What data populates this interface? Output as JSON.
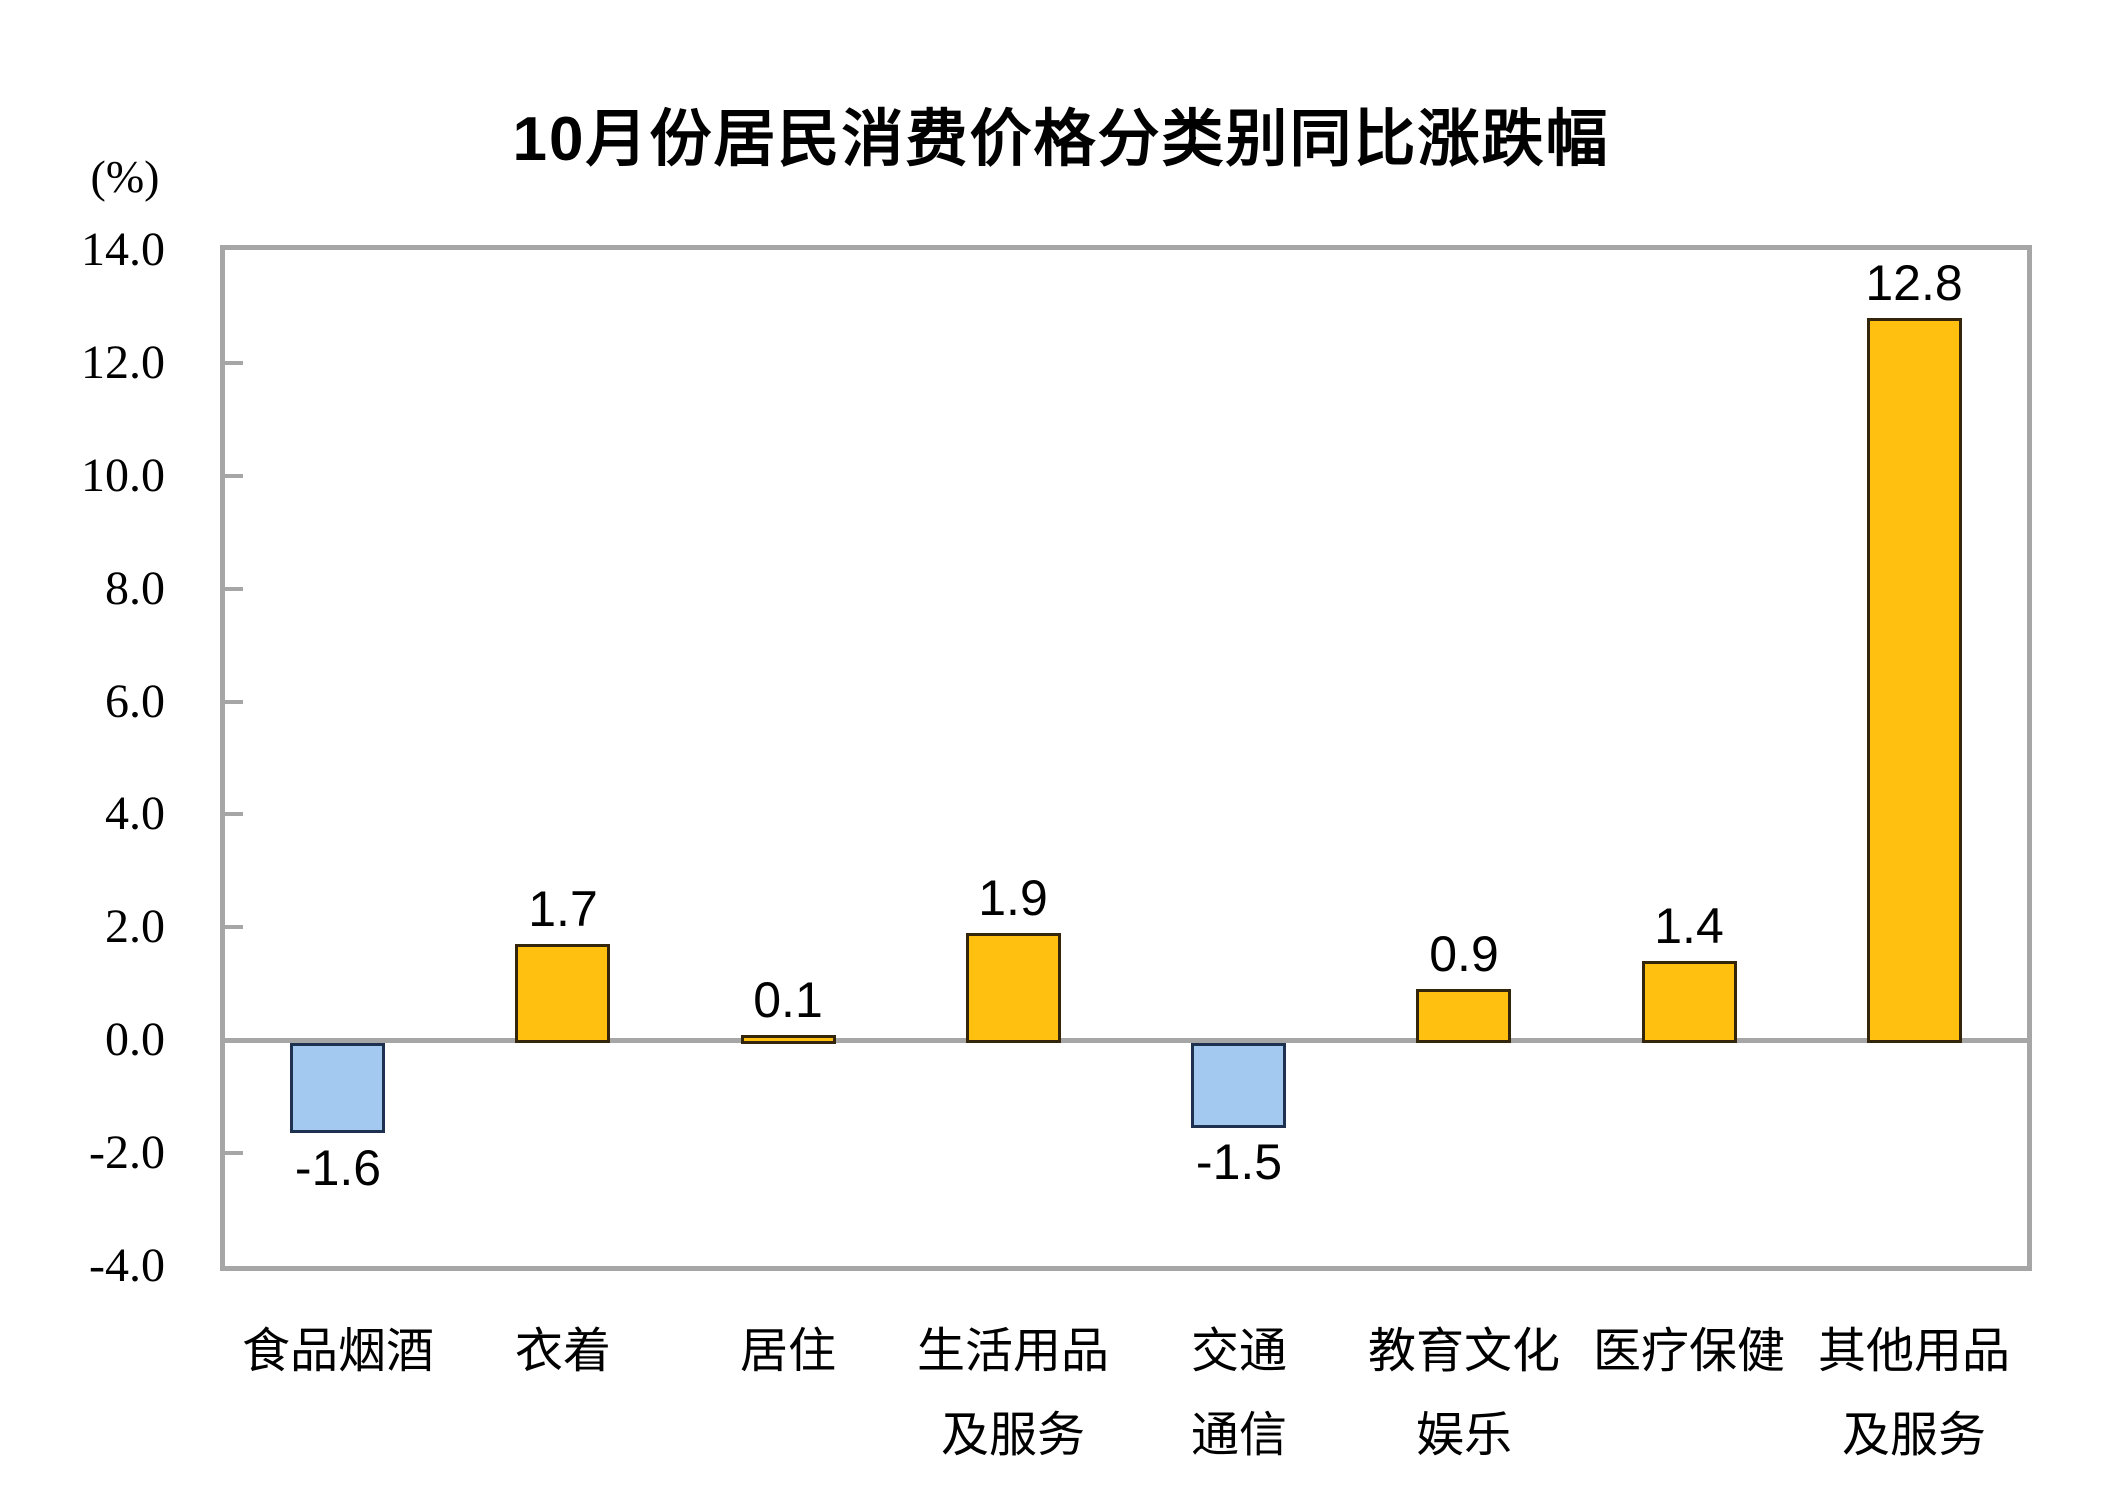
{
  "chart": {
    "title": "10月份居民消费价格分类别同比涨跌幅",
    "unit_label": "(%)"
  },
  "chart_data": {
    "type": "bar",
    "title": "10月份居民消费价格分类别同比涨跌幅",
    "unit": "%",
    "categories": [
      "食品烟酒",
      "衣着",
      "居住",
      "生活用品及服务",
      "交通通信",
      "教育文化娱乐",
      "医疗保健",
      "其他用品及服务"
    ],
    "category_label_lines": [
      [
        "食品烟酒"
      ],
      [
        "衣着"
      ],
      [
        "居住"
      ],
      [
        "生活用品",
        "及服务"
      ],
      [
        "交通",
        "通信"
      ],
      [
        "教育文化",
        "娱乐"
      ],
      [
        "医疗保健"
      ],
      [
        "其他用品",
        "及服务"
      ]
    ],
    "values": [
      -1.6,
      1.7,
      0.1,
      1.9,
      -1.5,
      0.9,
      1.4,
      12.8
    ],
    "value_labels": [
      "-1.6",
      "1.7",
      "0.1",
      "1.9",
      "-1.5",
      "0.9",
      "1.4",
      "12.8"
    ],
    "ylim": [
      -4.0,
      14.0
    ],
    "ytick_step": 2.0,
    "ytick_labels": [
      "14.0",
      "12.0",
      "10.0",
      "8.0",
      "6.0",
      "4.0",
      "2.0",
      "0.0",
      "-2.0",
      "-4.0"
    ],
    "xlabel": "",
    "ylabel": "(%)",
    "grid": false,
    "legend": false,
    "colors": {
      "positive_fill": "#FFC010",
      "positive_border": "#33260D",
      "negative_fill": "#A3C9F1",
      "negative_border": "#1F3150",
      "axis": "#A6A6A6",
      "text": "#000000"
    }
  }
}
